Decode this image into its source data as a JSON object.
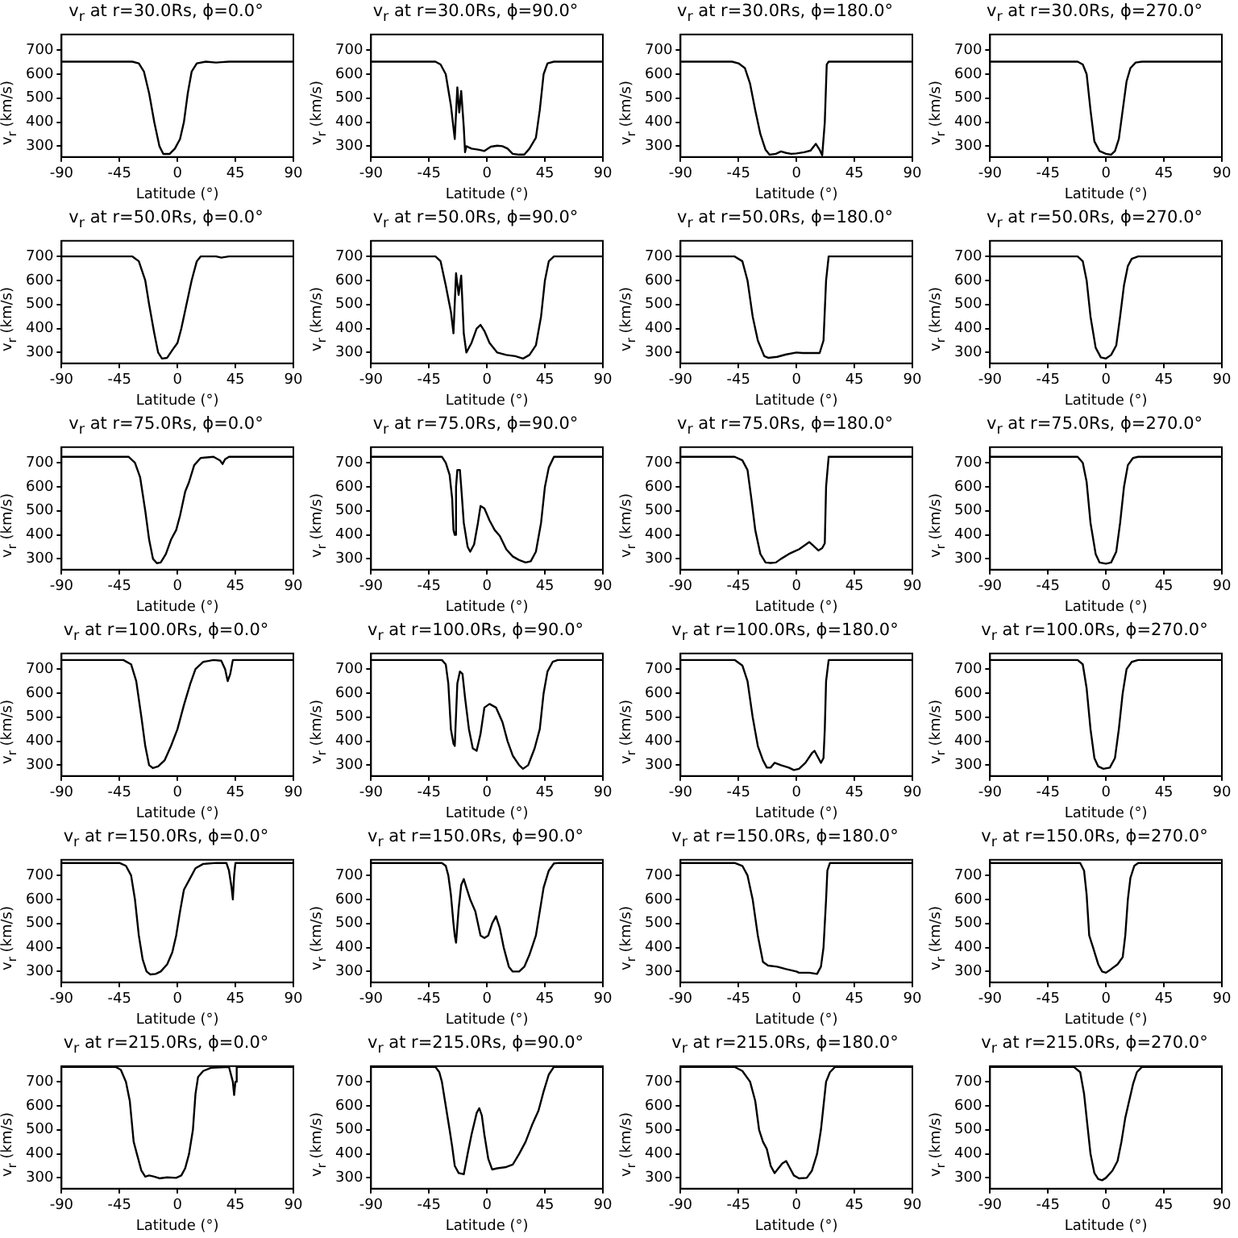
{
  "chart_data": [
    {
      "type": "line",
      "title": "v$_{r}$ at r=30.0Rs, ϕ=0.0°",
      "xlabel": "Latitude (°)",
      "ylabel": "v$_{r}$ (km/s)",
      "color": "#000000",
      "xlim": [
        -90,
        90
      ],
      "xticks": [
        -90,
        -45,
        0,
        45,
        90
      ],
      "ylim": [
        255,
        765
      ],
      "yticks": [
        300,
        400,
        500,
        600,
        700
      ],
      "x": [
        -90,
        -35,
        -30,
        -26,
        -22,
        -18,
        -14,
        -11,
        -6,
        -2,
        2,
        5,
        8,
        11,
        15,
        22,
        30,
        34,
        40,
        90
      ],
      "values": [
        652,
        652,
        645,
        610,
        520,
        400,
        300,
        268,
        268,
        290,
        330,
        400,
        520,
        610,
        645,
        652,
        648,
        650,
        652,
        652
      ]
    },
    {
      "type": "line",
      "title": "v$_{r}$ at r=30.0Rs, ϕ=90.0°",
      "xlabel": "Latitude (°)",
      "ylabel": "v$_{r}$ (km/s)",
      "color": "#000000",
      "xlim": [
        -90,
        90
      ],
      "xticks": [
        -90,
        -45,
        0,
        45,
        90
      ],
      "ylim": [
        255,
        765
      ],
      "yticks": [
        300,
        400,
        500,
        600,
        700
      ],
      "x": [
        -90,
        -40,
        -36,
        -32,
        -28,
        -25,
        -23,
        -21.5,
        -20,
        -18,
        -17,
        -16,
        -12,
        -6,
        -2,
        3,
        8,
        12,
        16,
        20,
        25,
        29,
        33,
        38,
        41,
        44,
        47,
        52,
        90
      ],
      "values": [
        652,
        652,
        640,
        600,
        470,
        330,
        545,
        440,
        530,
        380,
        275,
        300,
        290,
        285,
        280,
        298,
        302,
        300,
        290,
        268,
        265,
        265,
        290,
        335,
        450,
        600,
        645,
        652,
        652
      ]
    },
    {
      "type": "line",
      "title": "v$_{r}$ at r=30.0Rs, ϕ=180.0°",
      "xlabel": "Latitude (°)",
      "ylabel": "v$_{r}$ (km/s)",
      "color": "#000000",
      "xlim": [
        -90,
        90
      ],
      "xticks": [
        -90,
        -45,
        0,
        45,
        90
      ],
      "ylim": [
        255,
        765
      ],
      "yticks": [
        300,
        400,
        500,
        600,
        700
      ],
      "x": [
        -90,
        -50,
        -45,
        -40,
        -36,
        -32,
        -28,
        -24,
        -21,
        -16,
        -12,
        -8,
        -4,
        0,
        6,
        11,
        15,
        18,
        20,
        22,
        23.5,
        25,
        90
      ],
      "values": [
        652,
        652,
        645,
        625,
        560,
        450,
        350,
        285,
        265,
        268,
        278,
        272,
        268,
        270,
        275,
        282,
        310,
        285,
        262,
        400,
        640,
        652,
        652
      ]
    },
    {
      "type": "line",
      "title": "v$_{r}$ at r=30.0Rs, ϕ=270.0°",
      "xlabel": "Latitude (°)",
      "ylabel": "v$_{r}$ (km/s)",
      "color": "#000000",
      "xlim": [
        -90,
        90
      ],
      "xticks": [
        -90,
        -45,
        0,
        45,
        90
      ],
      "ylim": [
        255,
        765
      ],
      "yticks": [
        300,
        400,
        500,
        600,
        700
      ],
      "x": [
        -90,
        -22,
        -18,
        -15,
        -12,
        -9,
        -5,
        0,
        4,
        7,
        10,
        13,
        16,
        19,
        23,
        28,
        90
      ],
      "values": [
        652,
        652,
        640,
        600,
        450,
        320,
        280,
        268,
        265,
        280,
        330,
        450,
        570,
        625,
        648,
        652,
        652
      ]
    },
    {
      "type": "line",
      "title": "v$_{r}$ at r=50.0Rs, ϕ=0.0°",
      "xlabel": "Latitude (°)",
      "ylabel": "v$_{r}$ (km/s)",
      "color": "#000000",
      "xlim": [
        -90,
        90
      ],
      "xticks": [
        -90,
        -45,
        0,
        45,
        90
      ],
      "ylim": [
        255,
        765
      ],
      "yticks": [
        300,
        400,
        500,
        600,
        700
      ],
      "x": [
        -90,
        -35,
        -30,
        -25,
        -22,
        -18,
        -15,
        -12,
        -8,
        -4,
        0,
        3,
        7,
        11,
        15,
        18,
        30,
        34,
        40,
        90
      ],
      "values": [
        700,
        700,
        680,
        600,
        500,
        380,
        300,
        275,
        278,
        310,
        340,
        400,
        500,
        600,
        680,
        700,
        700,
        695,
        700,
        700
      ]
    },
    {
      "type": "line",
      "title": "v$_{r}$ at r=50.0Rs, ϕ=90.0°",
      "xlabel": "Latitude (°)",
      "ylabel": "v$_{r}$ (km/s)",
      "color": "#000000",
      "xlim": [
        -90,
        90
      ],
      "xticks": [
        -90,
        -45,
        0,
        45,
        90
      ],
      "ylim": [
        255,
        765
      ],
      "yticks": [
        300,
        400,
        500,
        600,
        700
      ],
      "x": [
        -90,
        -40,
        -36,
        -32,
        -28,
        -26,
        -24,
        -22,
        -20,
        -18,
        -16,
        -12,
        -8,
        -5,
        -2,
        2,
        8,
        15,
        22,
        28,
        33,
        38,
        42,
        45,
        48,
        52,
        90
      ],
      "values": [
        700,
        700,
        680,
        580,
        470,
        380,
        630,
        540,
        620,
        380,
        300,
        340,
        400,
        415,
        390,
        340,
        300,
        290,
        285,
        275,
        290,
        330,
        450,
        600,
        680,
        700,
        700
      ]
    },
    {
      "type": "line",
      "title": "v$_{r}$ at r=50.0Rs, ϕ=180.0°",
      "xlabel": "Latitude (°)",
      "ylabel": "v$_{r}$ (km/s)",
      "color": "#000000",
      "xlim": [
        -90,
        90
      ],
      "xticks": [
        -90,
        -45,
        0,
        45,
        90
      ],
      "ylim": [
        255,
        765
      ],
      "yticks": [
        300,
        400,
        500,
        600,
        700
      ],
      "x": [
        -90,
        -48,
        -42,
        -38,
        -34,
        -30,
        -25,
        -22,
        -15,
        -8,
        0,
        5,
        18,
        21,
        23,
        25,
        90
      ],
      "values": [
        700,
        700,
        680,
        600,
        450,
        350,
        285,
        278,
        282,
        292,
        300,
        298,
        298,
        350,
        600,
        700,
        700
      ]
    },
    {
      "type": "line",
      "title": "v$_{r}$ at r=50.0Rs, ϕ=270.0°",
      "xlabel": "Latitude (°)",
      "ylabel": "v$_{r}$ (km/s)",
      "color": "#000000",
      "xlim": [
        -90,
        90
      ],
      "xticks": [
        -90,
        -45,
        0,
        45,
        90
      ],
      "ylim": [
        255,
        765
      ],
      "yticks": [
        300,
        400,
        500,
        600,
        700
      ],
      "x": [
        -90,
        -22,
        -18,
        -15,
        -12,
        -8,
        -4,
        0,
        4,
        8,
        11,
        14,
        17,
        20,
        25,
        90
      ],
      "values": [
        700,
        700,
        680,
        600,
        450,
        320,
        280,
        275,
        290,
        330,
        450,
        580,
        660,
        690,
        700,
        700
      ]
    },
    {
      "type": "line",
      "title": "v$_{r}$ at r=75.0Rs, ϕ=0.0°",
      "xlabel": "Latitude (°)",
      "ylabel": "v$_{r}$ (km/s)",
      "color": "#000000",
      "xlim": [
        -90,
        90
      ],
      "xticks": [
        -90,
        -45,
        0,
        45,
        90
      ],
      "ylim": [
        255,
        765
      ],
      "yticks": [
        300,
        400,
        500,
        600,
        700
      ],
      "x": [
        -90,
        -38,
        -33,
        -29,
        -25,
        -22,
        -19,
        -16,
        -13,
        -9,
        -5,
        -1,
        2,
        6,
        9,
        13,
        18,
        28,
        33,
        35,
        37,
        40,
        90
      ],
      "values": [
        725,
        725,
        700,
        640,
        500,
        380,
        300,
        282,
        285,
        320,
        380,
        420,
        480,
        580,
        620,
        690,
        720,
        725,
        710,
        695,
        715,
        725,
        725
      ]
    },
    {
      "type": "line",
      "title": "v$_{r}$ at r=75.0Rs, ϕ=90.0°",
      "xlabel": "Latitude (°)",
      "ylabel": "v$_{r}$ (km/s)",
      "color": "#000000",
      "xlim": [
        -90,
        90
      ],
      "xticks": [
        -90,
        -45,
        0,
        45,
        90
      ],
      "ylim": [
        255,
        765
      ],
      "yticks": [
        300,
        400,
        500,
        600,
        700
      ],
      "x": [
        -90,
        -35,
        -32,
        -29,
        -27,
        -26,
        -25,
        -24,
        -23,
        -21,
        -20,
        -18,
        -15,
        -13,
        -10,
        -7,
        -5,
        -2,
        2,
        6,
        10,
        15,
        20,
        25,
        30,
        34,
        38,
        42,
        45,
        48,
        52,
        90
      ],
      "values": [
        725,
        725,
        700,
        650,
        550,
        420,
        400,
        600,
        670,
        670,
        600,
        450,
        350,
        330,
        360,
        450,
        520,
        510,
        460,
        420,
        395,
        340,
        310,
        295,
        285,
        290,
        330,
        450,
        600,
        680,
        725,
        725
      ]
    },
    {
      "type": "line",
      "title": "v$_{r}$ at r=75.0Rs, ϕ=180.0°",
      "xlabel": "Latitude (°)",
      "ylabel": "v$_{r}$ (km/s)",
      "color": "#000000",
      "xlim": [
        -90,
        90
      ],
      "xticks": [
        -90,
        -45,
        0,
        45,
        90
      ],
      "ylim": [
        255,
        765
      ],
      "yticks": [
        300,
        400,
        500,
        600,
        700
      ],
      "x": [
        -90,
        -48,
        -42,
        -38,
        -35,
        -32,
        -28,
        -24,
        -20,
        -16,
        -12,
        -6,
        -2,
        2,
        6,
        10,
        13,
        17,
        20,
        22,
        23,
        25,
        90
      ],
      "values": [
        725,
        725,
        710,
        670,
        550,
        420,
        320,
        285,
        283,
        285,
        300,
        320,
        330,
        340,
        355,
        370,
        355,
        335,
        345,
        365,
        600,
        725,
        725
      ]
    },
    {
      "type": "line",
      "title": "v$_{r}$ at r=75.0Rs, ϕ=270.0°",
      "xlabel": "Latitude (°)",
      "ylabel": "v$_{r}$ (km/s)",
      "color": "#000000",
      "xlim": [
        -90,
        90
      ],
      "xticks": [
        -90,
        -45,
        0,
        45,
        90
      ],
      "ylim": [
        255,
        765
      ],
      "yticks": [
        300,
        400,
        500,
        600,
        700
      ],
      "x": [
        -90,
        -22,
        -18,
        -15,
        -12,
        -8,
        -5,
        0,
        4,
        8,
        11,
        14,
        17,
        21,
        25,
        90
      ],
      "values": [
        725,
        725,
        700,
        620,
        450,
        320,
        285,
        280,
        285,
        330,
        450,
        600,
        690,
        720,
        725,
        725
      ]
    },
    {
      "type": "line",
      "title": "v$_{r}$ at r=100.0Rs, ϕ=0.0°",
      "xlabel": "Latitude (°)",
      "ylabel": "v$_{r}$ (km/s)",
      "color": "#000000",
      "xlim": [
        -90,
        90
      ],
      "xticks": [
        -90,
        -45,
        0,
        45,
        90
      ],
      "ylim": [
        255,
        765
      ],
      "yticks": [
        300,
        400,
        500,
        600,
        700
      ],
      "x": [
        -90,
        -42,
        -36,
        -32,
        -28,
        -25,
        -22,
        -19,
        -15,
        -10,
        -5,
        0,
        5,
        10,
        14,
        20,
        28,
        34,
        37,
        39,
        41,
        43,
        90
      ],
      "values": [
        738,
        738,
        720,
        650,
        500,
        380,
        300,
        288,
        295,
        320,
        380,
        450,
        550,
        640,
        700,
        730,
        738,
        735,
        700,
        650,
        680,
        738,
        738
      ]
    },
    {
      "type": "line",
      "title": "v$_{r}$ at r=100.0Rs, ϕ=90.0°",
      "xlabel": "Latitude (°)",
      "ylabel": "v$_{r}$ (km/s)",
      "color": "#000000",
      "xlim": [
        -90,
        90
      ],
      "xticks": [
        -90,
        -45,
        0,
        45,
        90
      ],
      "ylim": [
        255,
        765
      ],
      "yticks": [
        300,
        400,
        500,
        600,
        700
      ],
      "x": [
        -90,
        -35,
        -32,
        -30,
        -28,
        -26,
        -25,
        -23,
        -21,
        -19,
        -17,
        -14,
        -11,
        -8,
        -5,
        -2,
        2,
        7,
        12,
        16,
        20,
        25,
        28,
        32,
        37,
        41,
        44,
        47,
        51,
        55,
        90
      ],
      "values": [
        738,
        738,
        720,
        640,
        450,
        390,
        380,
        640,
        690,
        680,
        580,
        450,
        370,
        360,
        430,
        540,
        555,
        540,
        480,
        400,
        340,
        300,
        285,
        300,
        370,
        450,
        600,
        690,
        730,
        738,
        738
      ]
    },
    {
      "type": "line",
      "title": "v$_{r}$ at r=100.0Rs, ϕ=180.0°",
      "xlabel": "Latitude (°)",
      "ylabel": "v$_{r}$ (km/s)",
      "color": "#000000",
      "xlim": [
        -90,
        90
      ],
      "xticks": [
        -90,
        -45,
        0,
        45,
        90
      ],
      "ylim": [
        255,
        765
      ],
      "yticks": [
        300,
        400,
        500,
        600,
        700
      ],
      "x": [
        -90,
        -48,
        -42,
        -38,
        -34,
        -30,
        -26,
        -23,
        -20,
        -17,
        -12,
        -6,
        -2,
        2,
        7,
        12,
        14,
        17,
        19,
        21,
        22,
        23,
        25,
        90
      ],
      "values": [
        738,
        738,
        715,
        650,
        500,
        380,
        320,
        290,
        290,
        310,
        300,
        290,
        280,
        285,
        310,
        350,
        360,
        330,
        310,
        330,
        450,
        650,
        738,
        738
      ]
    },
    {
      "type": "line",
      "title": "v$_{r}$ at r=100.0Rs, ϕ=270.0°",
      "xlabel": "Latitude (°)",
      "ylabel": "v$_{r}$ (km/s)",
      "color": "#000000",
      "xlim": [
        -90,
        90
      ],
      "xticks": [
        -90,
        -45,
        0,
        45,
        90
      ],
      "ylim": [
        255,
        765
      ],
      "yticks": [
        300,
        400,
        500,
        600,
        700
      ],
      "x": [
        -90,
        -22,
        -18,
        -15,
        -12,
        -9,
        -6,
        -2,
        3,
        7,
        10,
        13,
        16,
        20,
        25,
        90
      ],
      "values": [
        738,
        738,
        720,
        620,
        450,
        330,
        295,
        285,
        290,
        330,
        450,
        600,
        700,
        730,
        738,
        738
      ]
    },
    {
      "type": "line",
      "title": "v$_{r}$ at r=150.0Rs, ϕ=0.0°",
      "xlabel": "Latitude (°)",
      "ylabel": "v$_{r}$ (km/s)",
      "color": "#000000",
      "xlim": [
        -90,
        90
      ],
      "xticks": [
        -90,
        -45,
        0,
        45,
        90
      ],
      "ylim": [
        255,
        765
      ],
      "yticks": [
        300,
        400,
        500,
        600,
        700
      ],
      "x": [
        -90,
        -45,
        -40,
        -36,
        -33,
        -30,
        -27,
        -24,
        -21,
        -17,
        -13,
        -8,
        -4,
        -1,
        2,
        5,
        9,
        14,
        20,
        30,
        38,
        40,
        42,
        43,
        44,
        45,
        90
      ],
      "values": [
        752,
        752,
        740,
        700,
        600,
        450,
        350,
        300,
        288,
        290,
        300,
        330,
        380,
        450,
        550,
        640,
        680,
        730,
        748,
        752,
        752,
        720,
        650,
        600,
        700,
        752,
        752
      ]
    },
    {
      "type": "line",
      "title": "v$_{r}$ at r=150.0Rs, ϕ=90.0°",
      "xlabel": "Latitude (°)",
      "ylabel": "v$_{r}$ (km/s)",
      "color": "#000000",
      "xlim": [
        -90,
        90
      ],
      "xticks": [
        -90,
        -45,
        0,
        45,
        90
      ],
      "ylim": [
        255,
        765
      ],
      "yticks": [
        300,
        400,
        500,
        600,
        700
      ],
      "x": [
        -90,
        -35,
        -32,
        -30,
        -28,
        -26,
        -25,
        -24,
        -22,
        -20,
        -18,
        -16,
        -13,
        -9,
        -5,
        -2,
        1,
        4,
        7,
        10,
        13,
        17,
        20,
        25,
        29,
        33,
        38,
        41,
        44,
        48,
        52,
        56,
        90
      ],
      "values": [
        752,
        752,
        740,
        700,
        620,
        500,
        450,
        420,
        560,
        660,
        685,
        650,
        600,
        550,
        450,
        440,
        450,
        500,
        530,
        480,
        400,
        320,
        300,
        300,
        320,
        370,
        450,
        550,
        650,
        720,
        750,
        752,
        752
      ]
    },
    {
      "type": "line",
      "title": "v$_{r}$ at r=150.0Rs, ϕ=180.0°",
      "xlabel": "Latitude (°)",
      "ylabel": "v$_{r}$ (km/s)",
      "color": "#000000",
      "xlim": [
        -90,
        90
      ],
      "xticks": [
        -90,
        -45,
        0,
        45,
        90
      ],
      "ylim": [
        255,
        765
      ],
      "yticks": [
        300,
        400,
        500,
        600,
        700
      ],
      "x": [
        -90,
        -48,
        -42,
        -38,
        -34,
        -30,
        -26,
        -22,
        -15,
        -8,
        0,
        2,
        10,
        16,
        19,
        21,
        23,
        24,
        26,
        90
      ],
      "values": [
        752,
        752,
        740,
        700,
        600,
        450,
        340,
        325,
        320,
        310,
        300,
        295,
        295,
        290,
        320,
        400,
        600,
        720,
        752,
        752
      ]
    },
    {
      "type": "line",
      "title": "v$_{r}$ at r=150.0Rs, ϕ=270.0°",
      "xlabel": "Latitude (°)",
      "ylabel": "v$_{r}$ (km/s)",
      "color": "#000000",
      "xlim": [
        -90,
        90
      ],
      "xticks": [
        -90,
        -45,
        0,
        45,
        90
      ],
      "ylim": [
        255,
        765
      ],
      "yticks": [
        300,
        400,
        500,
        600,
        700
      ],
      "x": [
        -90,
        -20,
        -17,
        -15,
        -13,
        -10,
        -6,
        -3,
        0,
        4,
        9,
        13,
        15,
        17,
        19,
        22,
        25,
        90
      ],
      "values": [
        752,
        752,
        720,
        620,
        450,
        400,
        330,
        300,
        295,
        310,
        330,
        360,
        450,
        600,
        690,
        740,
        752,
        752
      ]
    },
    {
      "type": "line",
      "title": "v$_{r}$ at r=215.0Rs, ϕ=0.0°",
      "xlabel": "Latitude (°)",
      "ylabel": "v$_{r}$ (km/s)",
      "color": "#000000",
      "xlim": [
        -90,
        90
      ],
      "xticks": [
        -90,
        -45,
        0,
        45,
        90
      ],
      "ylim": [
        255,
        765
      ],
      "yticks": [
        300,
        400,
        500,
        600,
        700
      ],
      "x": [
        -90,
        -48,
        -44,
        -40,
        -37,
        -34,
        -31,
        -28,
        -25,
        -22,
        -18,
        -14,
        -8,
        -1,
        3,
        6,
        9,
        12,
        14,
        16,
        20,
        26,
        40,
        43,
        44,
        45,
        46,
        90
      ],
      "values": [
        762,
        762,
        750,
        700,
        620,
        450,
        390,
        330,
        305,
        310,
        305,
        298,
        302,
        300,
        310,
        340,
        400,
        500,
        650,
        720,
        745,
        758,
        762,
        700,
        645,
        700,
        762,
        762
      ]
    },
    {
      "type": "line",
      "title": "v$_{r}$ at r=215.0Rs, ϕ=90.0°",
      "xlabel": "Latitude (°)",
      "ylabel": "v$_{r}$ (km/s)",
      "color": "#000000",
      "xlim": [
        -90,
        90
      ],
      "xticks": [
        -90,
        -45,
        0,
        45,
        90
      ],
      "ylim": [
        255,
        765
      ],
      "yticks": [
        300,
        400,
        500,
        600,
        700
      ],
      "x": [
        -90,
        -40,
        -37,
        -35,
        -32,
        -29,
        -27,
        -25,
        -22,
        -18,
        -15,
        -12,
        -8,
        -6,
        -4,
        -2,
        1,
        4,
        8,
        15,
        20,
        25,
        30,
        35,
        40,
        44,
        48,
        52,
        90
      ],
      "values": [
        762,
        762,
        740,
        700,
        600,
        500,
        430,
        350,
        320,
        315,
        400,
        480,
        570,
        590,
        560,
        480,
        380,
        335,
        340,
        345,
        355,
        400,
        450,
        520,
        580,
        660,
        730,
        762,
        762
      ]
    },
    {
      "type": "line",
      "title": "v$_{r}$ at r=215.0Rs, ϕ=180.0°",
      "xlabel": "Latitude (°)",
      "ylabel": "v$_{r}$ (km/s)",
      "color": "#000000",
      "xlim": [
        -90,
        90
      ],
      "xticks": [
        -90,
        -45,
        0,
        45,
        90
      ],
      "ylim": [
        255,
        765
      ],
      "yticks": [
        300,
        400,
        500,
        600,
        700
      ],
      "x": [
        -90,
        -48,
        -42,
        -36,
        -32,
        -29,
        -26,
        -23,
        -20,
        -17,
        -14,
        -11,
        -8,
        -5,
        -2,
        2,
        8,
        12,
        16,
        19,
        21,
        23,
        26,
        30,
        90
      ],
      "values": [
        762,
        762,
        745,
        700,
        620,
        500,
        450,
        420,
        350,
        320,
        340,
        360,
        370,
        340,
        310,
        298,
        300,
        330,
        400,
        500,
        600,
        700,
        740,
        762,
        762
      ]
    },
    {
      "type": "line",
      "title": "v$_{r}$ at r=215.0Rs, ϕ=270.0°",
      "xlabel": "Latitude (°)",
      "ylabel": "v$_{r}$ (km/s)",
      "color": "#000000",
      "xlim": [
        -90,
        90
      ],
      "xticks": [
        -90,
        -45,
        0,
        45,
        90
      ],
      "ylim": [
        255,
        765
      ],
      "yticks": [
        300,
        400,
        500,
        600,
        700
      ],
      "x": [
        -90,
        -25,
        -20,
        -17,
        -14,
        -12,
        -9,
        -6,
        -3,
        0,
        5,
        9,
        12,
        15,
        18,
        21,
        24,
        28,
        90
      ],
      "values": [
        762,
        762,
        740,
        650,
        500,
        400,
        320,
        295,
        290,
        300,
        330,
        370,
        450,
        550,
        620,
        690,
        740,
        762,
        762
      ]
    }
  ]
}
